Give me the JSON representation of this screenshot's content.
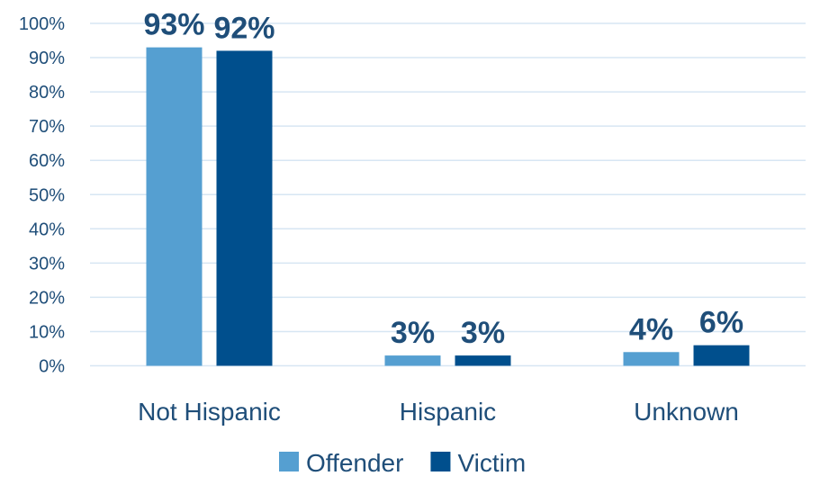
{
  "chart_data": {
    "type": "bar",
    "categories": [
      "Not Hispanic",
      "Hispanic",
      "Unknown"
    ],
    "series": [
      {
        "name": "Offender",
        "values": [
          93,
          3,
          4
        ],
        "labels": [
          "93%",
          "3%",
          "4%"
        ]
      },
      {
        "name": "Victim",
        "values": [
          92,
          3,
          6
        ],
        "labels": [
          "92%",
          "3%",
          "6%"
        ]
      }
    ],
    "ylim": [
      0,
      100
    ],
    "yticks": [
      "0%",
      "10%",
      "20%",
      "30%",
      "40%",
      "50%",
      "60%",
      "70%",
      "80%",
      "90%",
      "100%"
    ],
    "grid": true,
    "legend": "bottom",
    "colors": {
      "Offender": "#559fd1",
      "Victim": "#004f8d",
      "grid": "#d7e6f3",
      "text": "#1f4e79"
    }
  }
}
